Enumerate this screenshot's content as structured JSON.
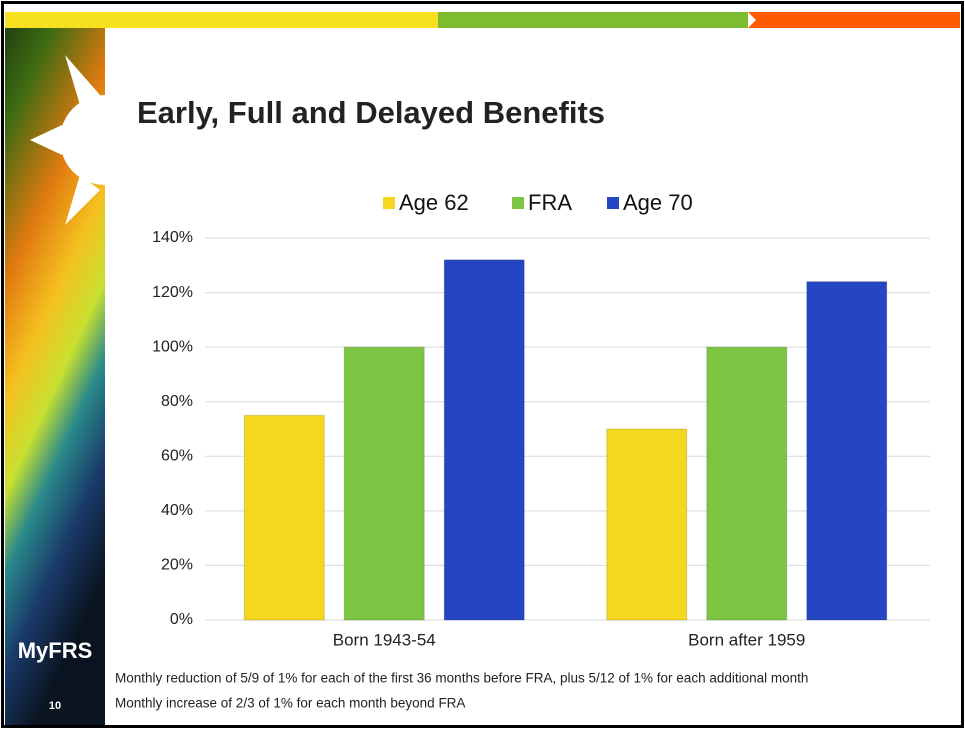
{
  "chart_data": {
    "type": "bar",
    "title": "Early, Full and Delayed Benefits",
    "categories": [
      "Born 1943-54",
      "Born after 1959"
    ],
    "series": [
      {
        "name": "Age 62",
        "color": "#f5d71f",
        "values": [
          75,
          70
        ]
      },
      {
        "name": "FRA",
        "color": "#7dc443",
        "values": [
          100,
          100
        ]
      },
      {
        "name": "Age 70",
        "color": "#2446c2",
        "values": [
          132,
          124
        ]
      }
    ],
    "ylim": [
      0,
      140
    ],
    "yticks": [
      {
        "value": 0,
        "label": "0%"
      },
      {
        "value": 20,
        "label": "20%"
      },
      {
        "value": 40,
        "label": "40%"
      },
      {
        "value": 60,
        "label": "60%"
      },
      {
        "value": 80,
        "label": "80%"
      },
      {
        "value": 100,
        "label": "100%"
      },
      {
        "value": 120,
        "label": "120%"
      },
      {
        "value": 140,
        "label": "140%"
      }
    ],
    "grid": true,
    "legend": "top",
    "notes": [
      "Monthly reduction of 5/9 of 1% for each of the first 36 months before FRA, plus 5/12 of 1% for each additional month",
      "Monthly increase of 2/3 of 1% for each month beyond FRA"
    ]
  },
  "slide": {
    "logo": "MyFRS",
    "page_number": "10"
  }
}
